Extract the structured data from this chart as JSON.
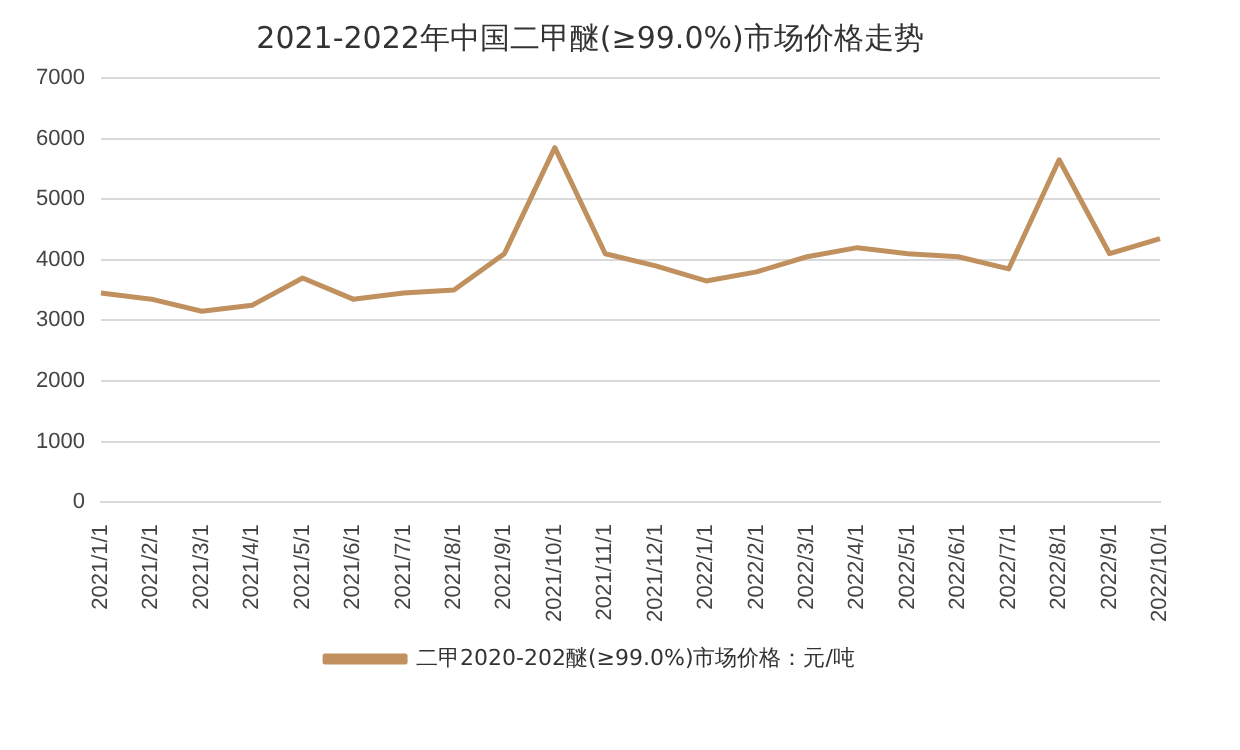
{
  "chart_data": {
    "type": "line",
    "title": "2021-2022年中国二甲醚(≥99.0%)市场价格走势",
    "categories": [
      "2021/1/1",
      "2021/2/1",
      "2021/3/1",
      "2021/4/1",
      "2021/5/1",
      "2021/6/1",
      "2021/7/1",
      "2021/8/1",
      "2021/9/1",
      "2021/10/1",
      "2021/11/1",
      "2021/12/1",
      "2022/1/1",
      "2022/2/1",
      "2022/3/1",
      "2022/4/1",
      "2022/5/1",
      "2022/6/1",
      "2022/7/1",
      "2022/8/1",
      "2022/9/1",
      "2022/10/1"
    ],
    "series": [
      {
        "name": "二甲2020-202醚(≥99.0%)市场价格：元/吨",
        "color": "#c0915e",
        "values": [
          3450,
          3350,
          3150,
          3250,
          3700,
          3350,
          3450,
          3500,
          4100,
          5850,
          4100,
          3900,
          3650,
          3800,
          4050,
          4200,
          4100,
          4050,
          3850,
          5650,
          4100,
          4350
        ]
      }
    ],
    "ylim": [
      0,
      7000
    ],
    "yticks": [
      0,
      1000,
      2000,
      3000,
      4000,
      5000,
      6000,
      7000
    ],
    "grid": "y",
    "legend": "bottom",
    "marker": "none",
    "line_style": "solid"
  }
}
